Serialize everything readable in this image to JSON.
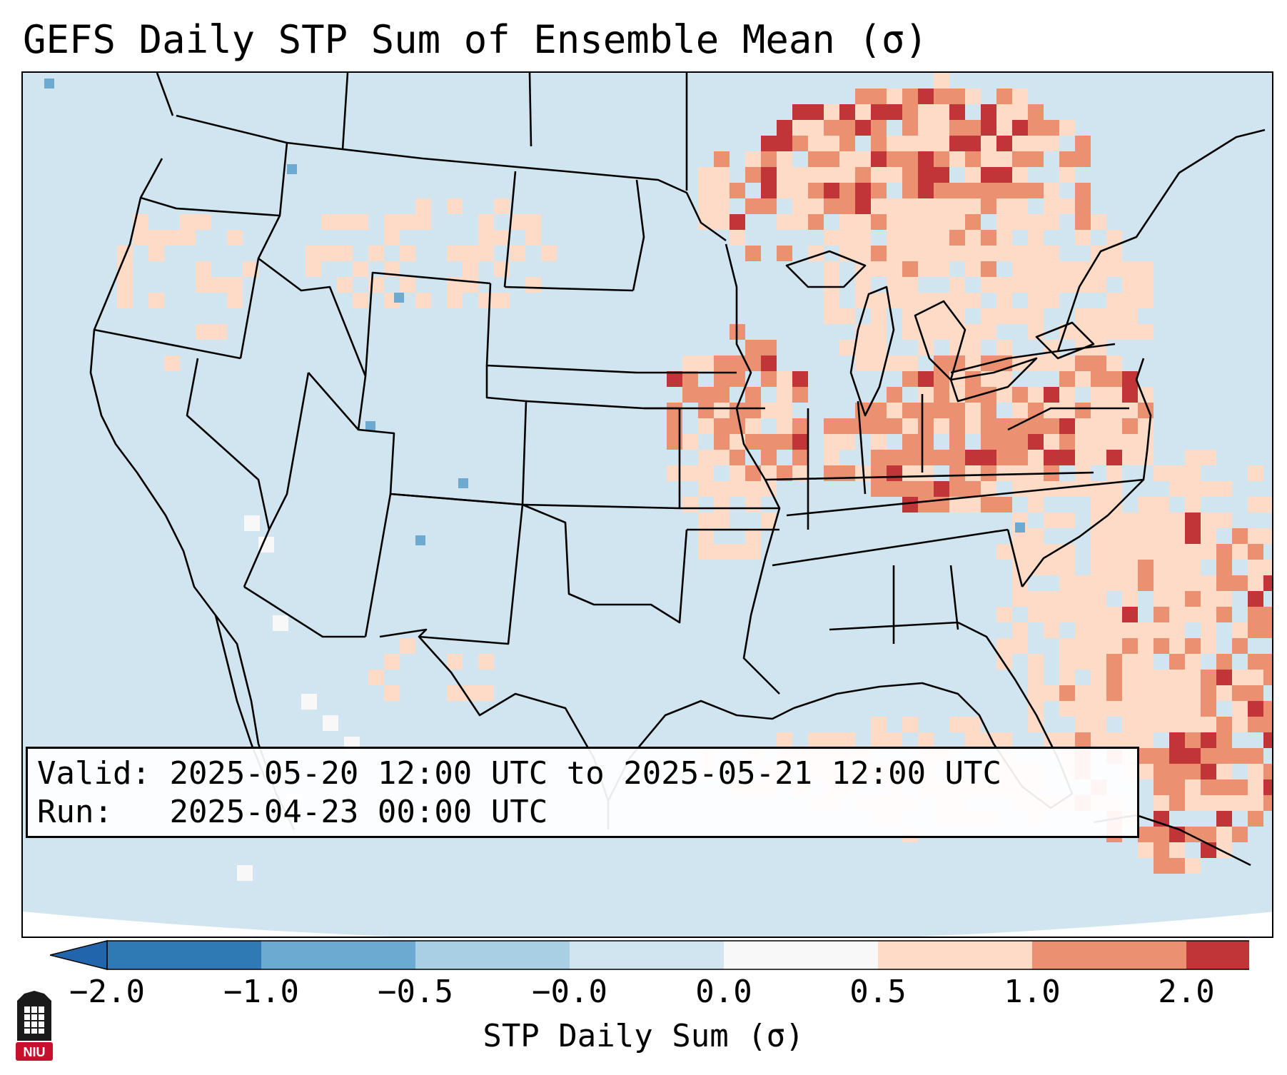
{
  "title": "GEFS Daily STP Sum of Ensemble Mean (σ)",
  "info": {
    "valid_label": "Valid:",
    "valid_value": "2025-05-20 12:00 UTC to 2025-05-21 12:00 UTC",
    "run_label": "Run:",
    "run_value": "2025-04-23 00:00 UTC"
  },
  "colorbar": {
    "label": "STP Daily Sum (σ)",
    "tick_labels": [
      "−2.0",
      "−1.0",
      "−0.5",
      "−0.0",
      "0.0",
      "0.5",
      "1.0",
      "2.0"
    ],
    "bins": [
      {
        "color": "#2f79b5"
      },
      {
        "color": "#6daad1"
      },
      {
        "color": "#a9cfe5"
      },
      {
        "color": "#d1e5f0"
      },
      {
        "color": "#f8f8f8"
      },
      {
        "color": "#fddbc7"
      },
      {
        "color": "#eb9172"
      },
      {
        "color": "#c13539"
      }
    ],
    "under_color": "#2166ac",
    "over_color": "#b2182b"
  },
  "legend_categories": {
    "background": "#d1e5f0",
    "ocean_outside": "#ffffff",
    "boundary_color": "#000000"
  },
  "logo": {
    "text": "NIU",
    "color": "#c8102e"
  }
}
